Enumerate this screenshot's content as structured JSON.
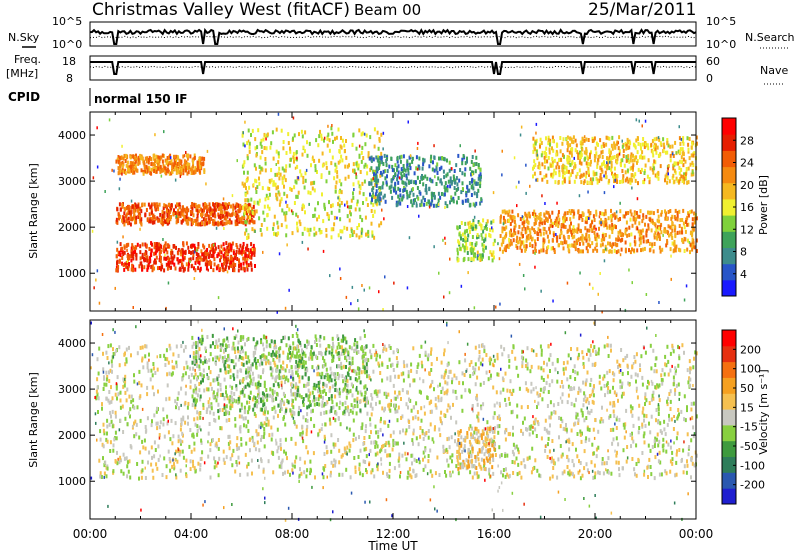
{
  "header": {
    "title": "Christmas Valley West (fitACF)",
    "beam": "Beam 00",
    "date": "25/Mar/2011"
  },
  "summary": {
    "nsky_label": "N.Sky",
    "nsky_ticks": [
      "10^5",
      "10^0"
    ],
    "nsearch_label": "N.Search",
    "nsearch_ticks": [
      "10^5",
      "10^0"
    ],
    "freq_label": "Freq.",
    "freq_unit": "[MHz]",
    "freq_ticks": [
      "18",
      "8"
    ],
    "nave_label": "Nave",
    "nave_ticks": [
      "60",
      "0"
    ],
    "cpid_label": "CPID",
    "cpid_text": "normal 150 IF"
  },
  "colors": {
    "power": [
      "#1a1aff",
      "#2855c8",
      "#3d8c8c",
      "#3ea35a",
      "#7fd13b",
      "#f0f030",
      "#f5b820",
      "#f58a10",
      "#f25c05",
      "#e61e00",
      "#ff0000"
    ],
    "velocity": [
      "#1f1fd0",
      "#2a58b0",
      "#2e7d5a",
      "#3e9a3e",
      "#88d040",
      "#c8c8c0",
      "#f5c050",
      "#f5a020",
      "#f57010",
      "#e63010",
      "#ff0000"
    ]
  },
  "chart_data": [
    {
      "type": "heatmap",
      "name": "power",
      "xlabel": "",
      "ylabel": "Slant Range [km]",
      "x_range_hours": [
        0,
        24
      ],
      "ylim": [
        180,
        4500
      ],
      "y_ticks": [
        "1000",
        "2000",
        "3000",
        "4000"
      ],
      "colorbar": {
        "label": "Power [dB]",
        "ticks": [
          "4",
          "8",
          "12",
          "16",
          "20",
          "24",
          "28"
        ],
        "range": [
          0,
          32
        ]
      },
      "features": [
        {
          "t": [
            1.0,
            6.5
          ],
          "range_km": [
            1100,
            1700
          ],
          "value": 27
        },
        {
          "t": [
            1.0,
            6.5
          ],
          "range_km": [
            2100,
            2550
          ],
          "value": 25
        },
        {
          "t": [
            1.0,
            4.5
          ],
          "range_km": [
            3200,
            3600
          ],
          "value": 22
        },
        {
          "t": [
            6.0,
            11.5
          ],
          "range_km": [
            1800,
            4200
          ],
          "value": 16
        },
        {
          "t": [
            11.0,
            15.5
          ],
          "range_km": [
            2500,
            3600
          ],
          "value": 8
        },
        {
          "t": [
            14.5,
            16.0
          ],
          "range_km": [
            1300,
            2200
          ],
          "value": 14
        },
        {
          "t": [
            16.2,
            24.0
          ],
          "range_km": [
            1500,
            2400
          ],
          "value": 21
        },
        {
          "t": [
            17.5,
            24.0
          ],
          "range_km": [
            3000,
            4000
          ],
          "value": 18
        }
      ]
    },
    {
      "type": "heatmap",
      "name": "velocity",
      "xlabel": "Time UT",
      "ylabel": "Slant Range [km]",
      "x_range_hours": [
        0,
        24
      ],
      "x_ticks": [
        "00:00",
        "04:00",
        "08:00",
        "12:00",
        "16:00",
        "20:00",
        "00:00"
      ],
      "ylim": [
        180,
        4500
      ],
      "y_ticks": [
        "1000",
        "2000",
        "3000",
        "4000"
      ],
      "colorbar": {
        "label": "Velocity [m s⁻¹]",
        "ticks": [
          "200",
          "100",
          "50",
          "15",
          "-15",
          "-50",
          "-100",
          "-200"
        ],
        "range": [
          -250,
          250
        ]
      },
      "features": [
        {
          "t": [
            0.2,
            24.0
          ],
          "range_km": [
            1100,
            4000
          ],
          "value": 0
        },
        {
          "t": [
            14.5,
            16.0
          ],
          "range_km": [
            1300,
            2200
          ],
          "value": 40
        },
        {
          "t": [
            4.0,
            11.0
          ],
          "range_km": [
            2500,
            4200
          ],
          "value": -40
        }
      ]
    }
  ]
}
